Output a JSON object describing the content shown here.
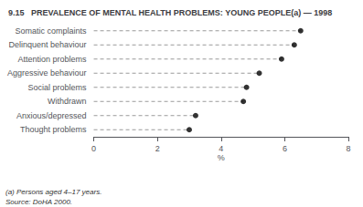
{
  "chart_data": {
    "type": "dot",
    "orientation": "horizontal",
    "title": "9.15   PREVALENCE OF MENTAL HEALTH PROBLEMS: YOUNG PEOPLE(a) — 1998",
    "categories": [
      "Thought problems",
      "Anxious/depressed",
      "Withdrawn",
      "Social problems",
      "Aggressive behaviour",
      "Attention problems",
      "Delinquent behaviour",
      "Somatic complaints"
    ],
    "values": [
      3.0,
      3.2,
      4.7,
      4.8,
      5.2,
      5.9,
      6.3,
      6.5
    ],
    "xlabel": "%",
    "xlim": [
      0,
      8
    ],
    "xticks": [
      0,
      2,
      4,
      6,
      8
    ],
    "annotations": [
      "(a) Persons aged 4–17 years.",
      "Source: DoHA 2000."
    ],
    "color": "#000000",
    "marker": "circle",
    "line_style": "dashed",
    "grid": false
  }
}
